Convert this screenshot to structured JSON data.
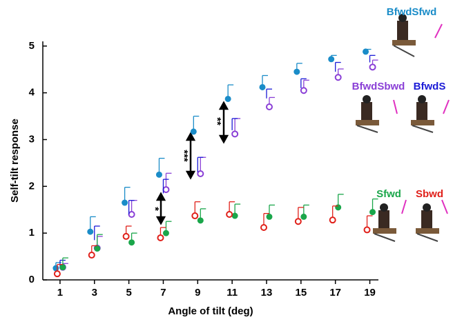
{
  "chart_data": {
    "type": "line",
    "xlabel": "Angle of tilt (deg)",
    "ylabel": "Self-tilt response",
    "x": [
      1,
      3,
      5,
      7,
      9,
      11,
      13,
      15,
      17,
      19
    ],
    "xlim": [
      0,
      19.5
    ],
    "xticks": [
      1,
      3,
      5,
      7,
      9,
      11,
      13,
      15,
      17,
      19
    ],
    "ylim": [
      0,
      5.1
    ],
    "yticks": [
      0,
      1,
      2,
      3,
      4,
      5
    ],
    "series": [
      {
        "name": "BfwdSfwd",
        "color": "#1a8cc8",
        "marker": "filled",
        "line": true,
        "values": [
          0.25,
          1.03,
          1.65,
          2.25,
          3.17,
          3.87,
          4.12,
          4.45,
          4.72,
          4.88
        ],
        "errors": [
          0.12,
          0.32,
          0.33,
          0.35,
          0.33,
          0.3,
          0.25,
          0.18,
          0.08,
          0.05
        ]
      },
      {
        "name": "BfwdSbwd",
        "color": "#8a3fd6",
        "marker": "open",
        "line": true,
        "values": [
          0.27,
          0.68,
          1.4,
          1.93,
          2.27,
          3.12,
          3.7,
          4.05,
          4.33,
          4.55
        ],
        "errors": [
          0.08,
          0.25,
          0.3,
          0.35,
          0.35,
          0.33,
          0.2,
          0.22,
          0.18,
          0.15
        ]
      },
      {
        "name": "BfwdS",
        "color": "#1a1ad6",
        "marker": "none",
        "line": true,
        "values": [
          0.3,
          0.85,
          1.4,
          1.85,
          2.3,
          3.2,
          3.88,
          4.1,
          4.45,
          4.65
        ],
        "errors": [
          0.12,
          0.3,
          0.3,
          0.3,
          0.32,
          0.25,
          0.2,
          0.2,
          0.2,
          0.15
        ]
      },
      {
        "name": "Sfwd",
        "color": "#1aa64a",
        "marker": "filled",
        "line": false,
        "values": [
          0.27,
          0.67,
          0.8,
          1.0,
          1.27,
          1.37,
          1.35,
          1.35,
          1.55,
          1.45
        ],
        "errors": [
          0.2,
          0.3,
          0.2,
          0.25,
          0.25,
          0.25,
          0.25,
          0.25,
          0.28,
          0.28
        ]
      },
      {
        "name": "Sbwd",
        "color": "#e0201a",
        "marker": "open",
        "line": false,
        "values": [
          0.13,
          0.53,
          0.93,
          0.9,
          1.37,
          1.4,
          1.12,
          1.25,
          1.28,
          1.07
        ],
        "errors": [
          0.2,
          0.2,
          0.22,
          0.22,
          0.3,
          0.27,
          0.3,
          0.3,
          0.3,
          0.3
        ]
      }
    ],
    "annotations": [
      "*",
      "***",
      "**"
    ]
  }
}
